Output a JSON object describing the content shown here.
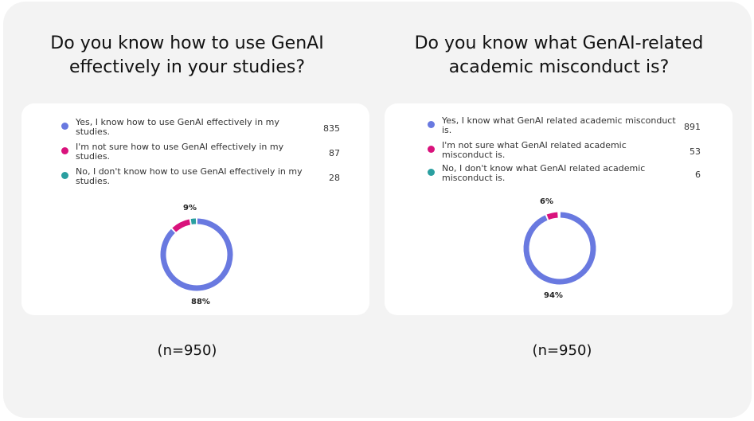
{
  "chart_data": [
    {
      "type": "pie",
      "title": "Do you know how to use GenAI effectively in your studies?",
      "title_lines": [
        "Do you know how to use GenAI",
        "effectively in your studies?"
      ],
      "sample_size": "(n=950)",
      "legend": [
        {
          "label_lines": [
            "Yes, I know how to use GenAI effectively in my",
            "studies."
          ],
          "value": 835,
          "display_value": "835",
          "color": "#6979e0"
        },
        {
          "label_lines": [
            "I'm not sure how to use GenAI effectively in my",
            "studies."
          ],
          "value": 87,
          "display_value": "87",
          "color": "#d9127c"
        },
        {
          "label_lines": [
            "No, I don't know how to use GenAI effectively in my",
            "studies."
          ],
          "value": 28,
          "display_value": "28",
          "color": "#2a9fa0"
        }
      ],
      "data_labels": [
        "88%",
        "9%",
        ""
      ]
    },
    {
      "type": "pie",
      "title": "Do you know what GenAI-related academic misconduct is?",
      "title_lines": [
        "Do you know what GenAI-related",
        "academic misconduct is?"
      ],
      "sample_size": "(n=950)",
      "legend": [
        {
          "label_lines": [
            "Yes, I know what GenAI related academic misconduct",
            "is."
          ],
          "value": 891,
          "display_value": "891",
          "color": "#6979e0"
        },
        {
          "label_lines": [
            "I'm not sure what GenAI related academic",
            "misconduct is."
          ],
          "value": 53,
          "display_value": "53",
          "color": "#d9127c"
        },
        {
          "label_lines": [
            "No, I don't know what GenAI related academic",
            "misconduct is."
          ],
          "value": 6,
          "display_value": "6",
          "color": "#2a9fa0"
        }
      ],
      "data_labels": [
        "94%",
        "6%",
        ""
      ]
    }
  ]
}
